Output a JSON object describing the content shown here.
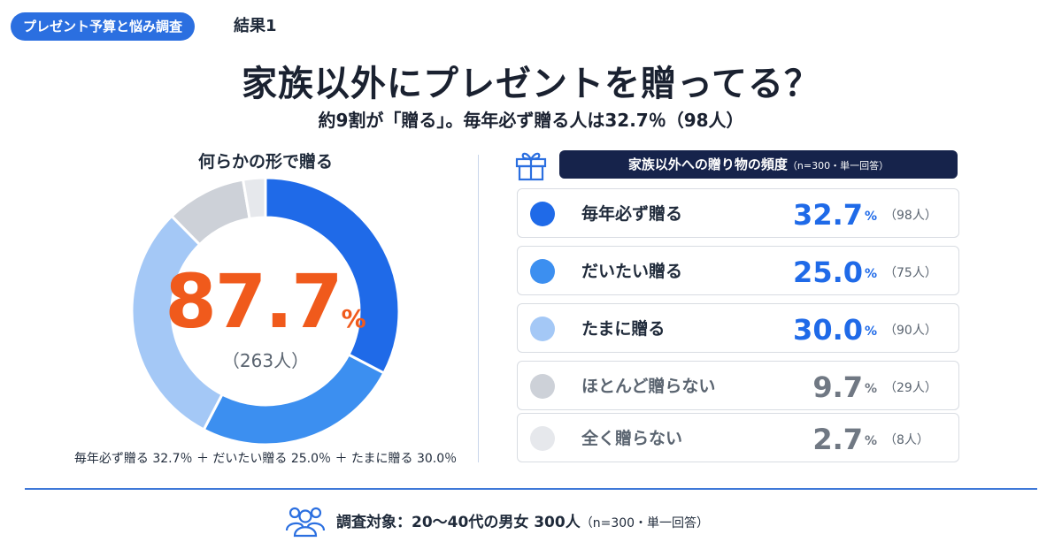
{
  "header": {
    "badge": "プレゼント予算と悩み調査",
    "result": "結果1"
  },
  "title": "家族以外にプレゼントを贈ってる？",
  "subtitle": "約9割が「贈る」。毎年必ず贈る人は32.7％（98人）",
  "donut": {
    "caption": "何らかの形で贈る",
    "center_value": "87.7",
    "center_unit": "%",
    "center_count": "（263人）",
    "note": "毎年必ず贈る 32.7％ ＋ だいたい贈る 25.0％ ＋ たまに贈る 30.0％"
  },
  "legend": {
    "header": "家族以外への贈り物の頻度",
    "header_note": "（n=300・単一回答）",
    "rows": [
      {
        "label": "毎年必ず贈る",
        "value": "32.7",
        "unit": "%",
        "count": "（98人）"
      },
      {
        "label": "だいたい贈る",
        "value": "25.0",
        "unit": "%",
        "count": "（75人）"
      },
      {
        "label": "たまに贈る",
        "value": "30.0",
        "unit": "%",
        "count": "（90人）"
      },
      {
        "label": "ほとんど贈らない",
        "value": "9.7",
        "unit": "%",
        "count": "（29人）"
      },
      {
        "label": "全く贈らない",
        "value": "2.7",
        "unit": "%",
        "count": "（8人）"
      }
    ]
  },
  "footer": {
    "survey": "調査対象：20〜40代の男女 300人",
    "survey_note": "（n=300・単一回答）"
  },
  "chart_data": {
    "type": "pie",
    "categories": [
      "毎年必ず贈る",
      "だいたい贈る",
      "たまに贈る",
      "ほとんど贈らない",
      "全く贈らない"
    ],
    "values": [
      32.7,
      25.0,
      30.0,
      9.7,
      2.7
    ],
    "counts": [
      98,
      75,
      90,
      29,
      8
    ],
    "colors": [
      "#1f6ae8",
      "#3c8ff0",
      "#a4c8f6",
      "#cdd1d8",
      "#e6e8ec"
    ],
    "value_colors": [
      "#1f6ae8",
      "#1f6ae8",
      "#1f6ae8",
      "#707883",
      "#707883"
    ],
    "label_colors": [
      "#1f2a3a",
      "#1f2a3a",
      "#1f2a3a",
      "#5a6470",
      "#5a6470"
    ]
  }
}
